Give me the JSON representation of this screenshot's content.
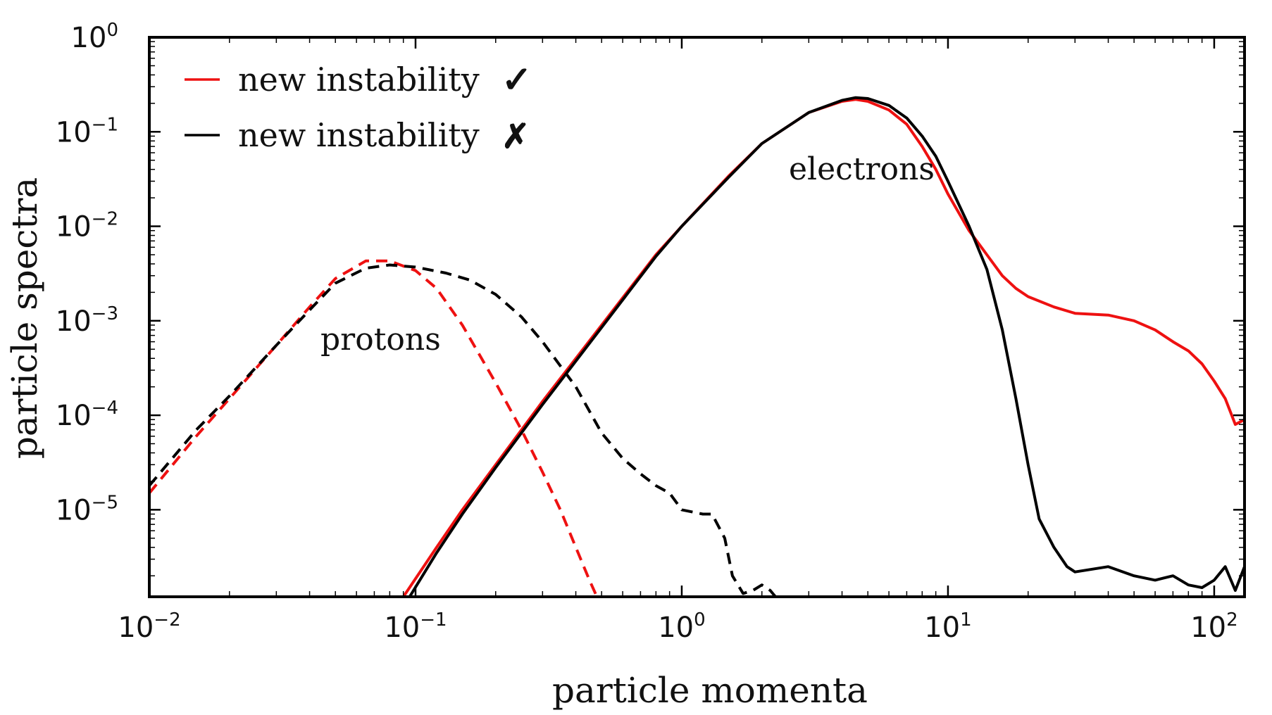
{
  "chart_data": {
    "type": "line",
    "xlabel": "particle momenta",
    "ylabel": "particle spectra",
    "xscale": "log",
    "yscale": "log",
    "xlim": [
      0.01,
      130
    ],
    "ylim": [
      1.2e-06,
      1.0
    ],
    "grid": false,
    "legend_position": "top-left",
    "x_tick_labels": [
      "10^-2",
      "10^-1",
      "10^0",
      "10^1",
      "10^2"
    ],
    "y_tick_labels": [
      "10^-5",
      "10^-4",
      "10^-3",
      "10^-2",
      "10^-1",
      "10^0"
    ],
    "colors": {
      "with_instability": "#ee1111",
      "without_instability": "#000000"
    },
    "legend": [
      {
        "label": "new instability",
        "mark": "✓",
        "color": "#ee1111"
      },
      {
        "label": "new instability",
        "mark": "✗",
        "color": "#000000"
      }
    ],
    "annotations": [
      {
        "text": "protons",
        "x": 0.065,
        "y": 0.0004
      },
      {
        "text": "electrons",
        "x": 3.2,
        "y": 0.045
      }
    ],
    "series": [
      {
        "species": "protons",
        "instability": true,
        "color": "#ee1111",
        "dash": "dashed",
        "x": [
          0.01,
          0.015,
          0.02,
          0.03,
          0.04,
          0.05,
          0.065,
          0.08,
          0.1,
          0.12,
          0.15,
          0.2,
          0.25,
          0.3,
          0.35,
          0.4,
          0.45,
          0.48
        ],
        "y": [
          1.5e-05,
          6e-05,
          0.00015,
          0.00055,
          0.0014,
          0.0028,
          0.0043,
          0.0043,
          0.0034,
          0.0022,
          0.0009,
          0.00022,
          7e-05,
          2.5e-05,
          1e-05,
          4e-06,
          1.8e-06,
          1.2e-06
        ]
      },
      {
        "species": "protons",
        "instability": false,
        "color": "#000000",
        "dash": "dashed",
        "x": [
          0.01,
          0.015,
          0.02,
          0.03,
          0.04,
          0.05,
          0.065,
          0.08,
          0.1,
          0.13,
          0.16,
          0.2,
          0.25,
          0.3,
          0.4,
          0.5,
          0.6,
          0.7,
          0.8,
          0.9,
          1.0,
          1.2,
          1.3,
          1.45,
          1.55,
          1.7,
          1.85,
          2.0,
          2.15,
          2.25
        ],
        "y": [
          1.8e-05,
          7e-05,
          0.00016,
          0.00055,
          0.0013,
          0.0025,
          0.0036,
          0.0039,
          0.0037,
          0.0032,
          0.0027,
          0.0019,
          0.0011,
          0.0006,
          0.0002,
          6.5e-05,
          3.5e-05,
          2.4e-05,
          1.8e-05,
          1.5e-05,
          1e-05,
          9e-06,
          9e-06,
          5e-06,
          2e-06,
          1.3e-06,
          1.4e-06,
          1.6e-06,
          1.4e-06,
          1.2e-06
        ]
      },
      {
        "species": "electrons",
        "instability": true,
        "color": "#ee1111",
        "dash": "solid",
        "x": [
          0.09,
          0.12,
          0.15,
          0.2,
          0.3,
          0.5,
          0.8,
          1.0,
          1.5,
          2.0,
          3.0,
          4.0,
          4.5,
          5.0,
          6.0,
          7.0,
          8.0,
          9.0,
          10.0,
          12.0,
          14.0,
          16.0,
          18.0,
          20.0,
          25.0,
          30.0,
          40.0,
          50.0,
          60.0,
          70.0,
          80.0,
          90.0,
          100.0,
          110.0,
          120.0,
          130.0
        ],
        "y": [
          1.2e-06,
          4e-06,
          1e-05,
          3e-05,
          0.00014,
          0.0009,
          0.005,
          0.01,
          0.034,
          0.075,
          0.16,
          0.21,
          0.22,
          0.21,
          0.17,
          0.12,
          0.07,
          0.04,
          0.022,
          0.009,
          0.005,
          0.003,
          0.0022,
          0.0018,
          0.0014,
          0.0012,
          0.00115,
          0.001,
          0.0008,
          0.0006,
          0.00048,
          0.00035,
          0.00023,
          0.00015,
          8e-05,
          9e-05
        ]
      },
      {
        "species": "electrons",
        "instability": false,
        "color": "#000000",
        "dash": "solid",
        "x": [
          0.095,
          0.12,
          0.15,
          0.2,
          0.3,
          0.5,
          0.8,
          1.0,
          1.5,
          2.0,
          3.0,
          4.0,
          4.5,
          5.0,
          6.0,
          7.0,
          8.0,
          9.0,
          10.0,
          12.0,
          14.0,
          16.0,
          18.0,
          20.0,
          22.0,
          25.0,
          28.0,
          30.0,
          40.0,
          50.0,
          60.0,
          70.0,
          80.0,
          90.0,
          100.0,
          110.0,
          120.0,
          130.0
        ],
        "y": [
          1.2e-06,
          3.5e-06,
          9e-06,
          2.8e-05,
          0.00013,
          0.00085,
          0.0048,
          0.01,
          0.033,
          0.075,
          0.16,
          0.215,
          0.23,
          0.225,
          0.19,
          0.14,
          0.09,
          0.055,
          0.03,
          0.01,
          0.0035,
          0.0008,
          0.00015,
          3e-05,
          8e-06,
          4e-06,
          2.5e-06,
          2.2e-06,
          2.5e-06,
          2e-06,
          1.8e-06,
          2e-06,
          1.6e-06,
          1.5e-06,
          1.8e-06,
          2.5e-06,
          1.4e-06,
          2.5e-06
        ]
      }
    ]
  }
}
